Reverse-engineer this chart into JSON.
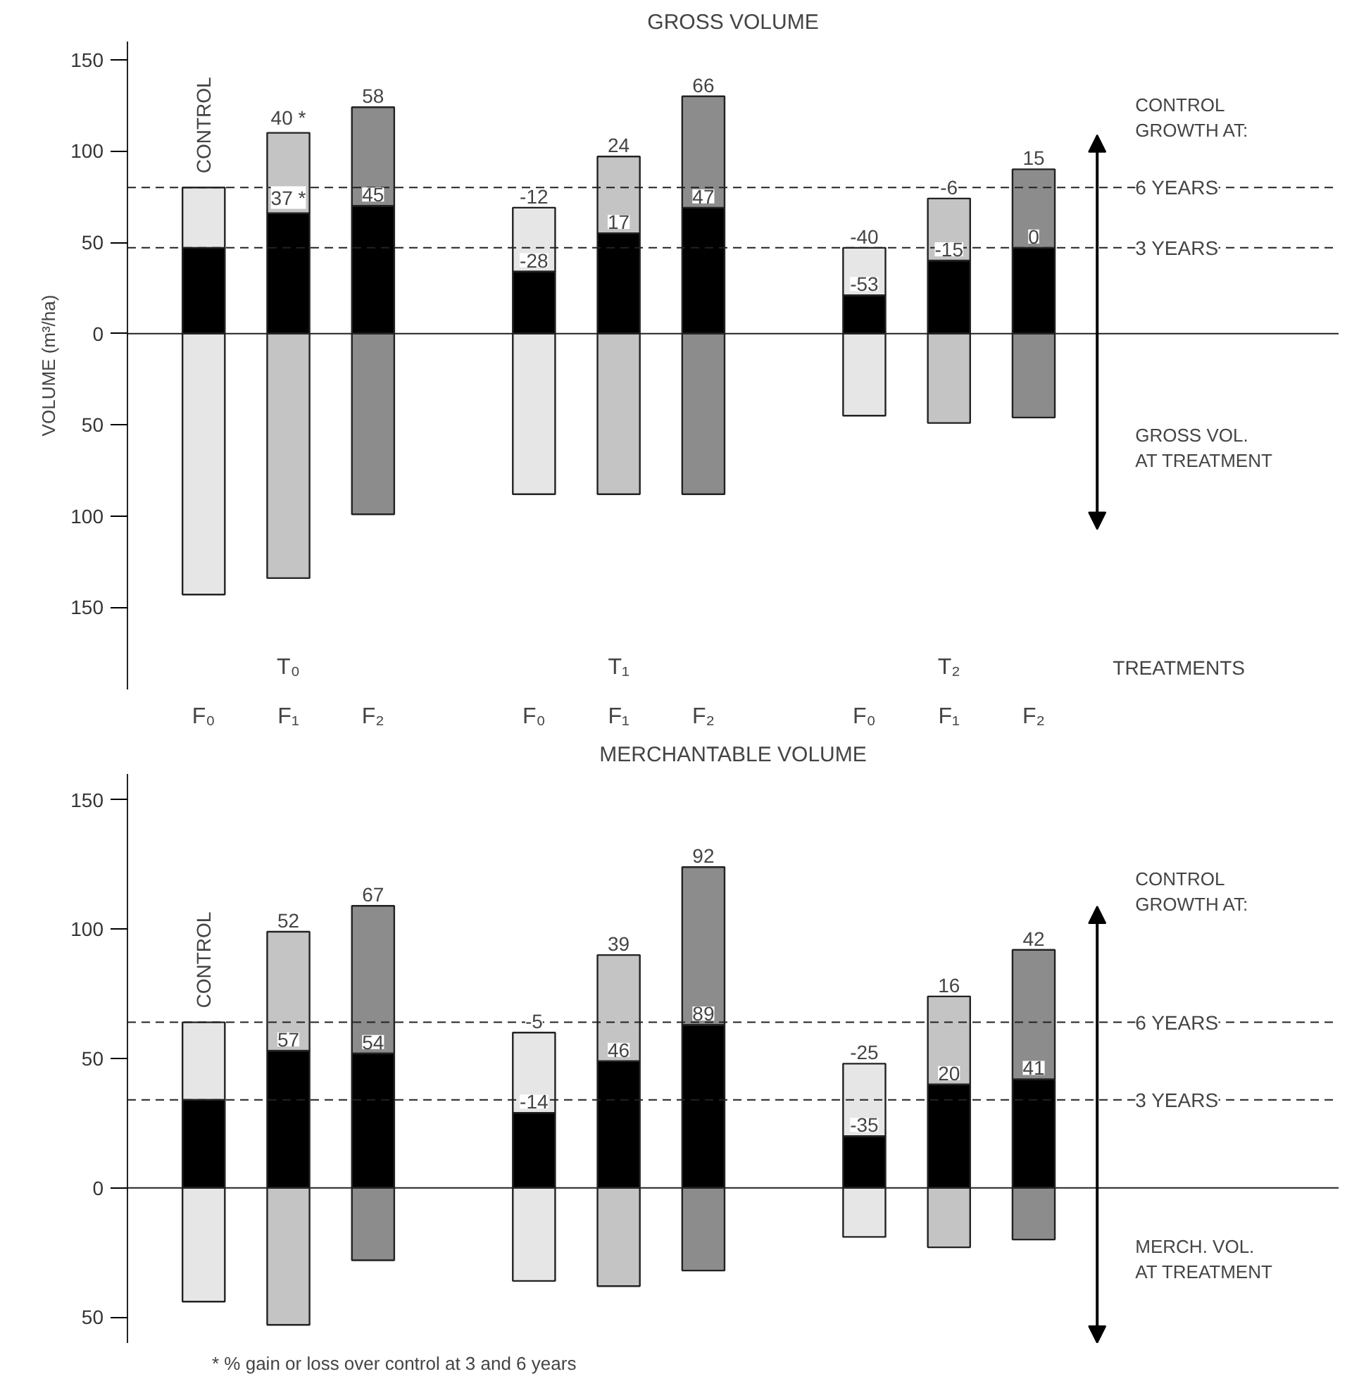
{
  "chart_data": [
    {
      "type": "bar",
      "title": "GROSS VOLUME",
      "ylabel": "VOLUME (m³/ha)",
      "stacked": true,
      "grid": false,
      "categories": [
        "F₀",
        "F₁",
        "F₂",
        "F₀",
        "F₁",
        "F₂",
        "F₀",
        "F₁",
        "F₂"
      ],
      "series": [
        {
          "color": "#000000",
          "values": [
            47,
            66,
            70,
            34,
            55,
            69,
            21,
            40,
            47
          ]
        },
        {
          "colors": [
            "#e6e6e6",
            "#c4c4c4",
            "#8c8c8c",
            "#e6e6e6",
            "#c4c4c4",
            "#8c8c8c",
            "#e6e6e6",
            "#c4c4c4",
            "#8c8c8c"
          ],
          "values": [
            33,
            44,
            54,
            35,
            42,
            61,
            26,
            34,
            43
          ]
        },
        {
          "colors": [
            "#e6e6e6",
            "#c4c4c4",
            "#8c8c8c",
            "#e6e6e6",
            "#c4c4c4",
            "#8c8c8c",
            "#e6e6e6",
            "#c4c4c4",
            "#8c8c8c"
          ],
          "values": [
            -143,
            -134,
            -99,
            -88,
            -88,
            -88,
            -45,
            -49,
            -46
          ]
        }
      ],
      "ylim": [
        -195,
        160
      ],
      "yticks": [
        {
          "value": -150,
          "label": "150"
        },
        {
          "value": -100,
          "label": "100"
        },
        {
          "value": -50,
          "label": "50"
        },
        0,
        50,
        100,
        150
      ],
      "ref_lines": [
        {
          "axis": "y",
          "value": 0,
          "line_style": "solid"
        },
        {
          "axis": "y",
          "value": 80,
          "label": "6 YEARS",
          "line_style": "dashed"
        },
        {
          "axis": "y",
          "value": 47,
          "label": "3 YEARS",
          "line_style": "dashed"
        }
      ],
      "annotations": [
        "CONTROL",
        "CONTROL GROWTH AT:",
        "GROSS VOL. AT TREATMENT",
        "T₀",
        "T₁",
        "T₂",
        "TREATMENTS",
        "37 *",
        "40 *",
        "45",
        "58",
        "-28",
        "-12",
        "17",
        "24",
        "47",
        "66",
        "-53",
        "-40",
        "-15",
        "-6",
        "0",
        "15"
      ]
    },
    {
      "type": "bar",
      "title": "MERCHANTABLE VOLUME",
      "stacked": true,
      "grid": false,
      "categories": [
        null,
        null,
        null,
        null,
        null,
        null,
        null,
        null,
        null
      ],
      "series": [
        {
          "color": "#000000",
          "values": [
            34,
            53,
            52,
            29,
            49,
            63,
            20,
            40,
            42
          ]
        },
        {
          "colors": [
            "#e6e6e6",
            "#c4c4c4",
            "#8c8c8c",
            "#e6e6e6",
            "#c4c4c4",
            "#8c8c8c",
            "#e6e6e6",
            "#c4c4c4",
            "#8c8c8c"
          ],
          "values": [
            30,
            46,
            57,
            31,
            41,
            61,
            28,
            34,
            50
          ]
        },
        {
          "colors": [
            "#e6e6e6",
            "#c4c4c4",
            "#8c8c8c",
            "#e6e6e6",
            "#c4c4c4",
            "#8c8c8c",
            "#e6e6e6",
            "#c4c4c4",
            "#8c8c8c"
          ],
          "values": [
            -44,
            -53,
            -28,
            -36,
            -38,
            -32,
            -19,
            -23,
            -20
          ]
        }
      ],
      "ylim": [
        -60,
        160
      ],
      "yticks": [
        {
          "value": -50,
          "label": "50"
        },
        0,
        50,
        100,
        150
      ],
      "ref_lines": [
        {
          "axis": "y",
          "value": 0,
          "line_style": "solid"
        },
        {
          "axis": "y",
          "value": 64,
          "label": "6 YEARS",
          "line_style": "dashed"
        },
        {
          "axis": "y",
          "value": 34,
          "label": "3 YEARS",
          "line_style": "dashed"
        }
      ],
      "annotations": [
        "CONTROL",
        "CONTROL GROWTH AT:",
        "MERCH. VOL. AT TREATMENT",
        "* % gain or loss over control at 3 and 6 years",
        "57",
        "52",
        "54",
        "67",
        "-14",
        "-5",
        "46",
        "39",
        "89",
        "92",
        "-35",
        "-25",
        "20",
        "16",
        "41",
        "42"
      ]
    }
  ]
}
